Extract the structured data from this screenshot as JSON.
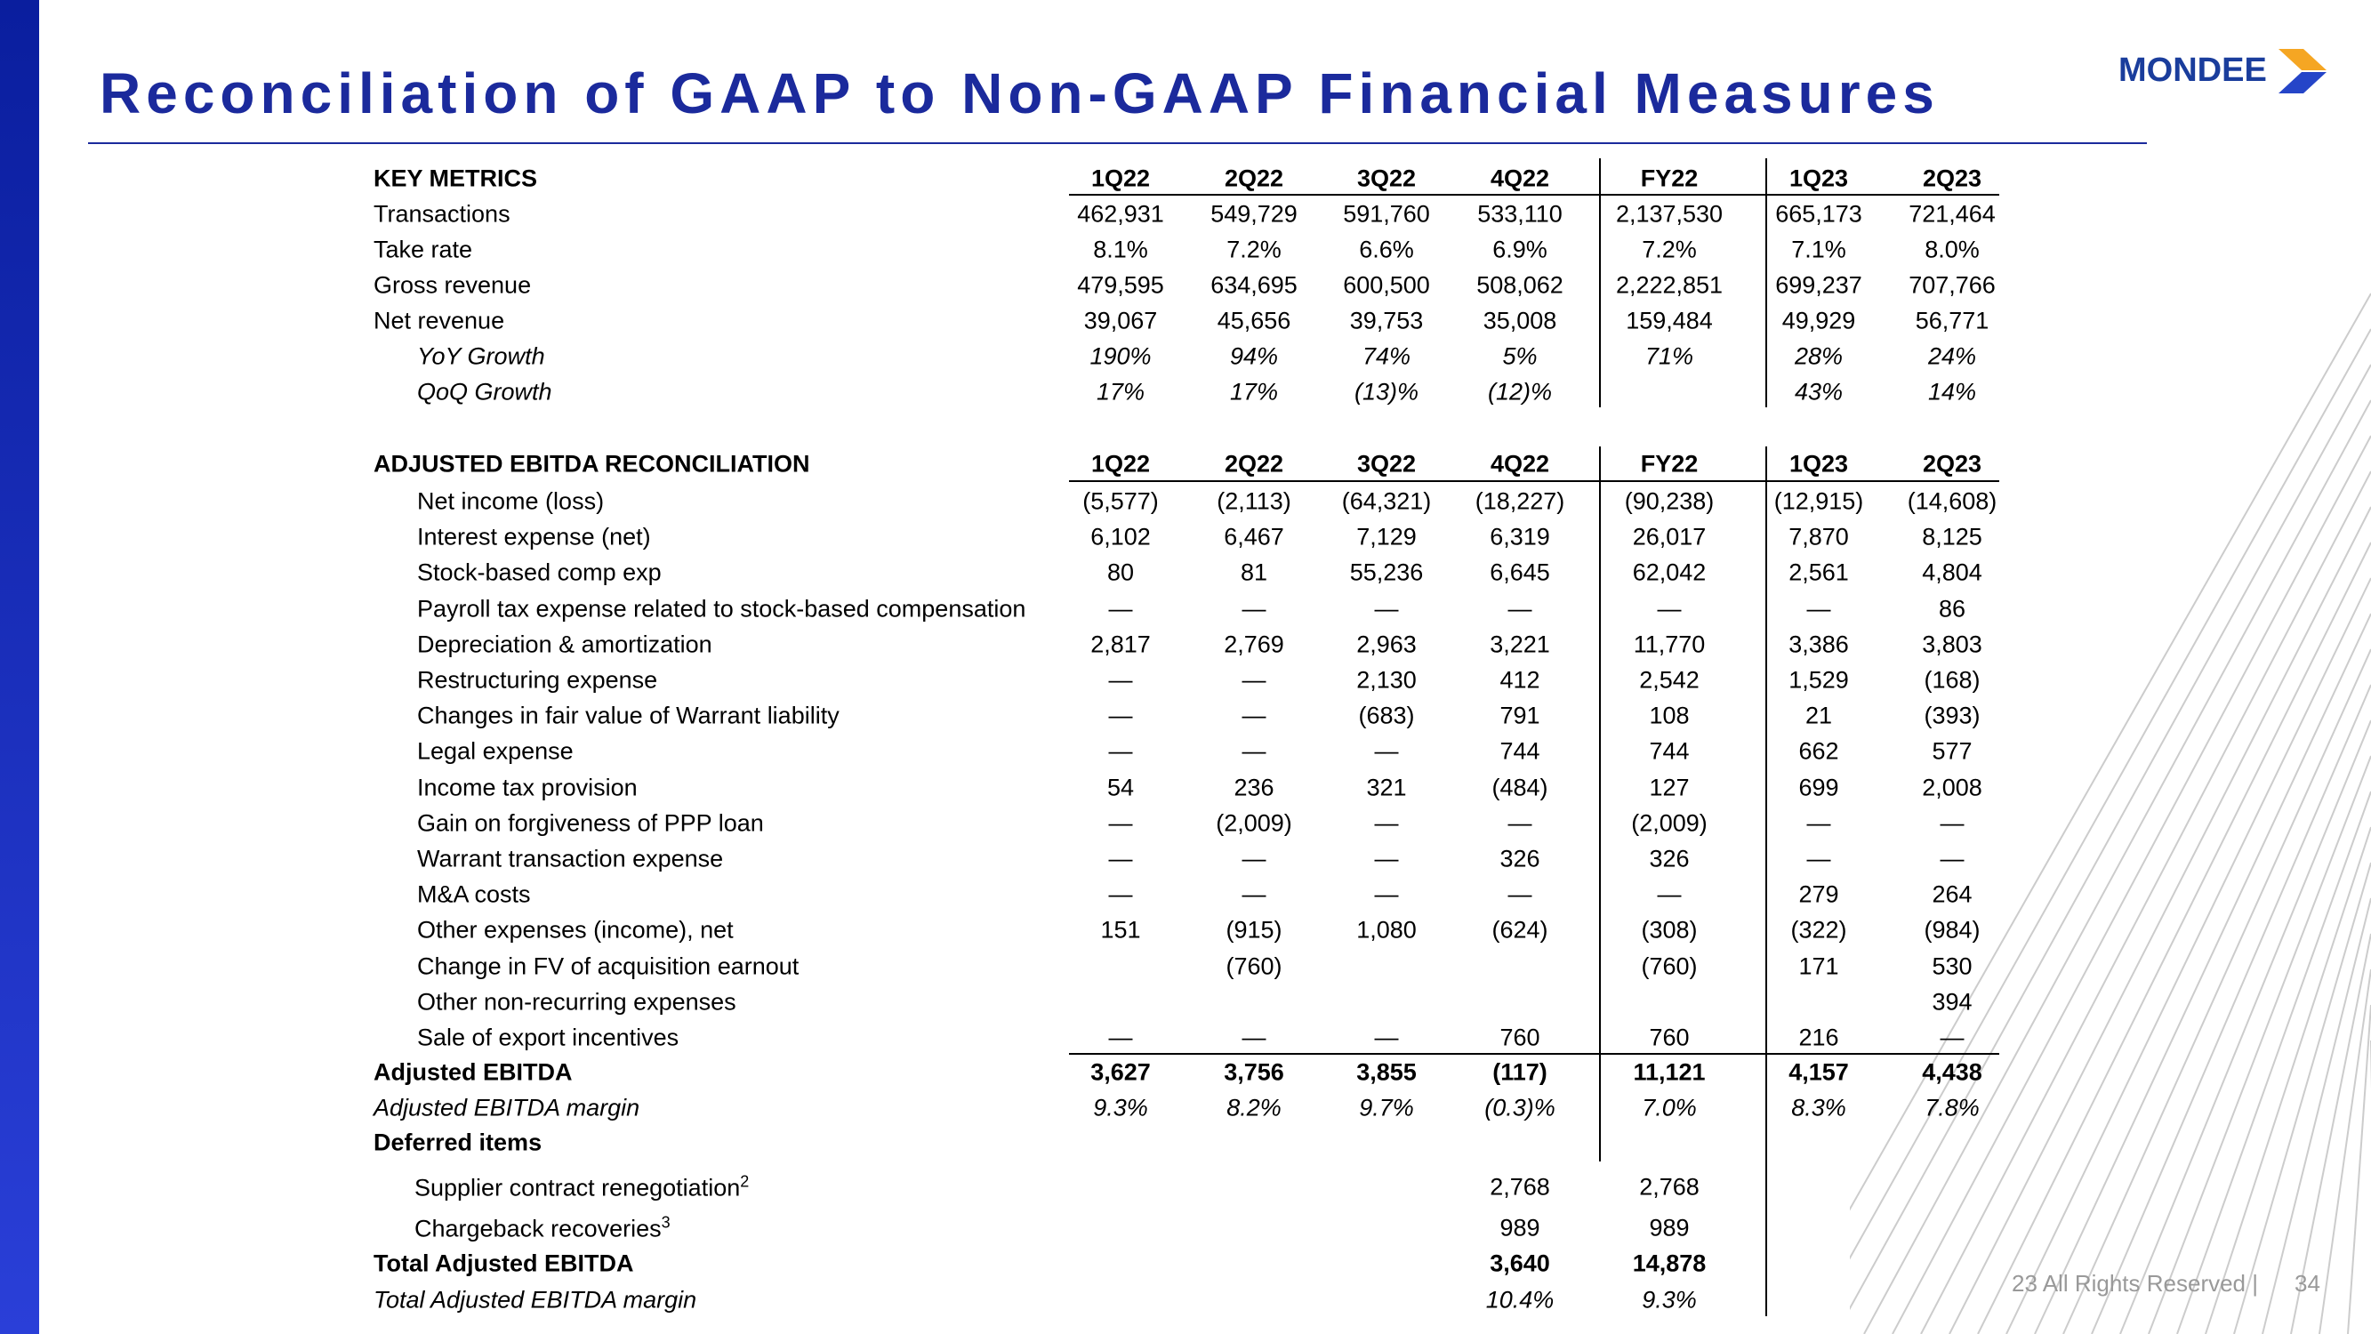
{
  "header": {
    "title": "Reconciliation of GAAP to Non-GAAP Financial Measures",
    "logo": "MONDEE"
  },
  "key_metrics": {
    "title": "KEY METRICS",
    "columns": [
      "1Q22",
      "2Q22",
      "3Q22",
      "4Q22",
      "FY22",
      "1Q23",
      "2Q23"
    ],
    "rows": [
      {
        "label": "Transactions",
        "values": [
          "462,931",
          "549,729",
          "591,760",
          "533,110",
          "2,137,530",
          "665,173",
          "721,464"
        ]
      },
      {
        "label": "Take rate",
        "values": [
          "8.1%",
          "7.2%",
          "6.6%",
          "6.9%",
          "7.2%",
          "7.1%",
          "8.0%"
        ]
      },
      {
        "label": "Gross revenue",
        "values": [
          "479,595",
          "634,695",
          "600,500",
          "508,062",
          "2,222,851",
          "699,237",
          "707,766"
        ]
      },
      {
        "label": "Net revenue",
        "values": [
          "39,067",
          "45,656",
          "39,753",
          "35,008",
          "159,484",
          "49,929",
          "56,771"
        ]
      },
      {
        "label": "YoY Growth",
        "values": [
          "190%",
          "94%",
          "74%",
          "5%",
          "71%",
          "28%",
          "24%"
        ]
      },
      {
        "label": "QoQ Growth",
        "values": [
          "17%",
          "17%",
          "(13)%",
          "(12)%",
          null,
          "43%",
          "14%"
        ]
      }
    ]
  },
  "ebitda": {
    "title": "ADJUSTED EBITDA RECONCILIATION",
    "columns": [
      "1Q22",
      "2Q22",
      "3Q22",
      "4Q22",
      "FY22",
      "1Q23",
      "2Q23"
    ],
    "rows": [
      {
        "label": "Net income (loss)",
        "values": [
          "(5,577)",
          "(2,113)",
          "(64,321)",
          "(18,227)",
          "(90,238)",
          "(12,915)",
          "(14,608)"
        ]
      },
      {
        "label": "Interest expense (net)",
        "values": [
          "6,102",
          "6,467",
          "7,129",
          "6,319",
          "26,017",
          "7,870",
          "8,125"
        ]
      },
      {
        "label": "Stock-based comp exp",
        "values": [
          "80",
          "81",
          "55,236",
          "6,645",
          "62,042",
          "2,561",
          "4,804"
        ]
      },
      {
        "label": "Payroll tax expense related to stock-based compensation",
        "values": [
          "—",
          "—",
          "—",
          "—",
          "—",
          "—",
          "86"
        ]
      },
      {
        "label": "Depreciation & amortization",
        "values": [
          "2,817",
          "2,769",
          "2,963",
          "3,221",
          "11,770",
          "3,386",
          "3,803"
        ]
      },
      {
        "label": "Restructuring expense",
        "values": [
          "—",
          "—",
          "2,130",
          "412",
          "2,542",
          "1,529",
          "(168)"
        ]
      },
      {
        "label": "Changes in fair value of Warrant liability",
        "values": [
          "—",
          "—",
          "(683)",
          "791",
          "108",
          "21",
          "(393)"
        ]
      },
      {
        "label": "Legal expense",
        "values": [
          "—",
          "—",
          "—",
          "744",
          "744",
          "662",
          "577"
        ]
      },
      {
        "label": "Income tax provision",
        "values": [
          "54",
          "236",
          "321",
          "(484)",
          "127",
          "699",
          "2,008"
        ]
      },
      {
        "label": "Gain on forgiveness of PPP loan",
        "values": [
          "—",
          "(2,009)",
          "—",
          "—",
          "(2,009)",
          "—",
          "—"
        ]
      },
      {
        "label": "Warrant transaction expense",
        "values": [
          "—",
          "—",
          "—",
          "326",
          "326",
          "—",
          "—"
        ]
      },
      {
        "label": "M&A costs",
        "values": [
          "—",
          "—",
          "—",
          "—",
          "—",
          "279",
          "264"
        ]
      },
      {
        "label": "Other expenses (income), net",
        "values": [
          "151",
          "(915)",
          "1,080",
          "(624)",
          "(308)",
          "(322)",
          "(984)"
        ]
      },
      {
        "label": "Change in FV of acquisition earnout",
        "values": [
          null,
          "(760)",
          null,
          null,
          "(760)",
          "171",
          "530"
        ]
      },
      {
        "label": "Other non-recurring expenses",
        "values": [
          null,
          null,
          null,
          null,
          null,
          null,
          "394"
        ]
      },
      {
        "label": "Sale of export incentives",
        "values": [
          "—",
          "—",
          "—",
          "760",
          "760",
          "216",
          "—"
        ]
      },
      {
        "label": "Adjusted EBITDA",
        "values": [
          "3,627",
          "3,756",
          "3,855",
          "(117)",
          "11,121",
          "4,157",
          "4,438"
        ]
      },
      {
        "label": "Adjusted EBITDA margin",
        "values": [
          "9.3%",
          "8.2%",
          "9.7%",
          "(0.3)%",
          "7.0%",
          "8.3%",
          "7.8%"
        ]
      },
      {
        "label": "Deferred items"
      },
      {
        "label": "Supplier contract renegotiation",
        "note": "2",
        "values": [
          null,
          null,
          null,
          "2,768",
          "2,768",
          null,
          null
        ]
      },
      {
        "label": "Chargeback recoveries",
        "note": "3",
        "values": [
          null,
          null,
          null,
          "989",
          "989",
          null,
          null
        ]
      },
      {
        "label": "Total Adjusted EBITDA",
        "values": [
          null,
          null,
          null,
          "3,640",
          "14,878",
          null,
          null
        ]
      },
      {
        "label": "Total Adjusted EBITDA margin",
        "values": [
          null,
          null,
          null,
          "10.4%",
          "9.3%",
          null,
          null
        ]
      }
    ]
  },
  "footer": {
    "rights": "23 All Rights Reserved |",
    "page": "34"
  }
}
